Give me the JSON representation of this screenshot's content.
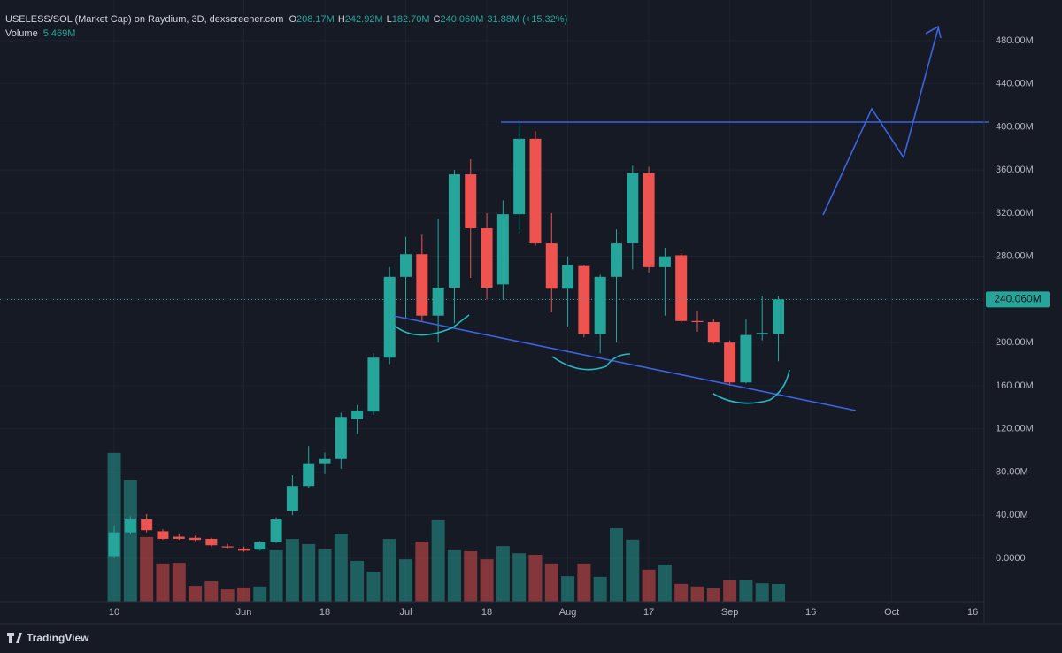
{
  "chart_data": {
    "type": "candlestick",
    "symbol": "USELESS/SOL (Market Cap) on Raydium, 3D, dexscreener.com",
    "ohlc_legend": [
      {
        "key": "O",
        "label": "208.17M"
      },
      {
        "key": "H",
        "label": "242.92M"
      },
      {
        "key": "L",
        "label": "182.70M"
      },
      {
        "key": "C",
        "label": "240.060M"
      }
    ],
    "change_label": "31.88M (+15.32%)",
    "volume_title": "Volume",
    "volume_label": "5.469M",
    "last_price_label": "240.060M",
    "brand": "TradingView",
    "up_color": "#26a69a",
    "down_color": "#ef5350",
    "grid": true,
    "open": [
      2,
      24,
      36,
      25,
      20,
      19,
      18,
      11,
      9,
      8,
      15,
      44,
      67,
      88,
      92,
      129,
      136,
      186,
      261,
      282,
      225,
      251,
      356,
      306,
      254,
      319,
      389,
      292,
      250,
      271,
      208,
      261,
      292,
      357,
      270,
      281,
      220,
      219,
      200,
      163,
      208,
      208.17
    ],
    "high": [
      30,
      39,
      41,
      27,
      23,
      21,
      19,
      13,
      11,
      16,
      38,
      77,
      104,
      98,
      135,
      142,
      190,
      270,
      298,
      300,
      315,
      360,
      370,
      320,
      332,
      405,
      396,
      320,
      280,
      272,
      263,
      305,
      364,
      363,
      288,
      283,
      229,
      222,
      202,
      222,
      243,
      242.92
    ],
    "low": [
      0,
      22,
      24,
      17,
      17,
      16,
      11,
      9,
      6,
      7,
      14,
      40,
      65,
      78,
      83,
      115,
      133,
      180,
      222,
      220,
      200,
      218,
      260,
      240,
      240,
      302,
      290,
      228,
      215,
      205,
      190,
      200,
      268,
      265,
      225,
      218,
      210,
      199,
      160,
      162,
      202,
      182.7
    ],
    "close": [
      24,
      36,
      26,
      18,
      18,
      17,
      12,
      10,
      7,
      15,
      36,
      67,
      88,
      92,
      131,
      137,
      186,
      261,
      282,
      225,
      251,
      356,
      306,
      251,
      319,
      389,
      292,
      250,
      272,
      208,
      261,
      292,
      357,
      270,
      280,
      220,
      219,
      200,
      163,
      207,
      209,
      240.06
    ],
    "volume": [
      46,
      37.5,
      20,
      11.8,
      12,
      4.9,
      6.3,
      3.8,
      4.4,
      4.7,
      15.9,
      19.4,
      17.8,
      16.2,
      21,
      12.6,
      9.3,
      19.4,
      13.1,
      18.6,
      25.2,
      15.9,
      15.6,
      13.1,
      17.2,
      15,
      14.5,
      11.8,
      7.9,
      11.8,
      7.7,
      22.7,
      19.2,
      9.9,
      11.5,
      5.5,
      4.7,
      4.1,
      6.6,
      6.6,
      5.7,
      5.469
    ],
    "volume_ylim": [
      0,
      186
    ],
    "xlim": [
      -7.05,
      53.7
    ],
    "xticks": [
      {
        "value": 0,
        "label": "10"
      },
      {
        "value": 8,
        "label": "Jun"
      },
      {
        "value": 13,
        "label": "18"
      },
      {
        "value": 18,
        "label": "Jul"
      },
      {
        "value": 23,
        "label": "18"
      },
      {
        "value": 28,
        "label": "Aug"
      },
      {
        "value": 33,
        "label": "17"
      },
      {
        "value": 38,
        "label": "Sep"
      },
      {
        "value": 43,
        "label": "16"
      },
      {
        "value": 48,
        "label": "Oct"
      },
      {
        "value": 53,
        "label": "16"
      }
    ],
    "ylim": [
      -40.3,
      517.7
    ],
    "yticks": [
      {
        "value": 0,
        "label": "0.0000"
      },
      {
        "value": 40,
        "label": "40.00M"
      },
      {
        "value": 80,
        "label": "80.00M"
      },
      {
        "value": 120,
        "label": "120.00M"
      },
      {
        "value": 160,
        "label": "160.00M"
      },
      {
        "value": 200,
        "label": "200.00M"
      },
      {
        "value": 240,
        "label": "240.00M"
      },
      {
        "value": 280,
        "label": "280.00M"
      },
      {
        "value": 320,
        "label": "320.00M"
      },
      {
        "value": 360,
        "label": "360.00M"
      },
      {
        "value": 400,
        "label": "400.00M"
      },
      {
        "value": 440,
        "label": "440.00M"
      },
      {
        "value": 480,
        "label": "480.00M"
      }
    ]
  }
}
